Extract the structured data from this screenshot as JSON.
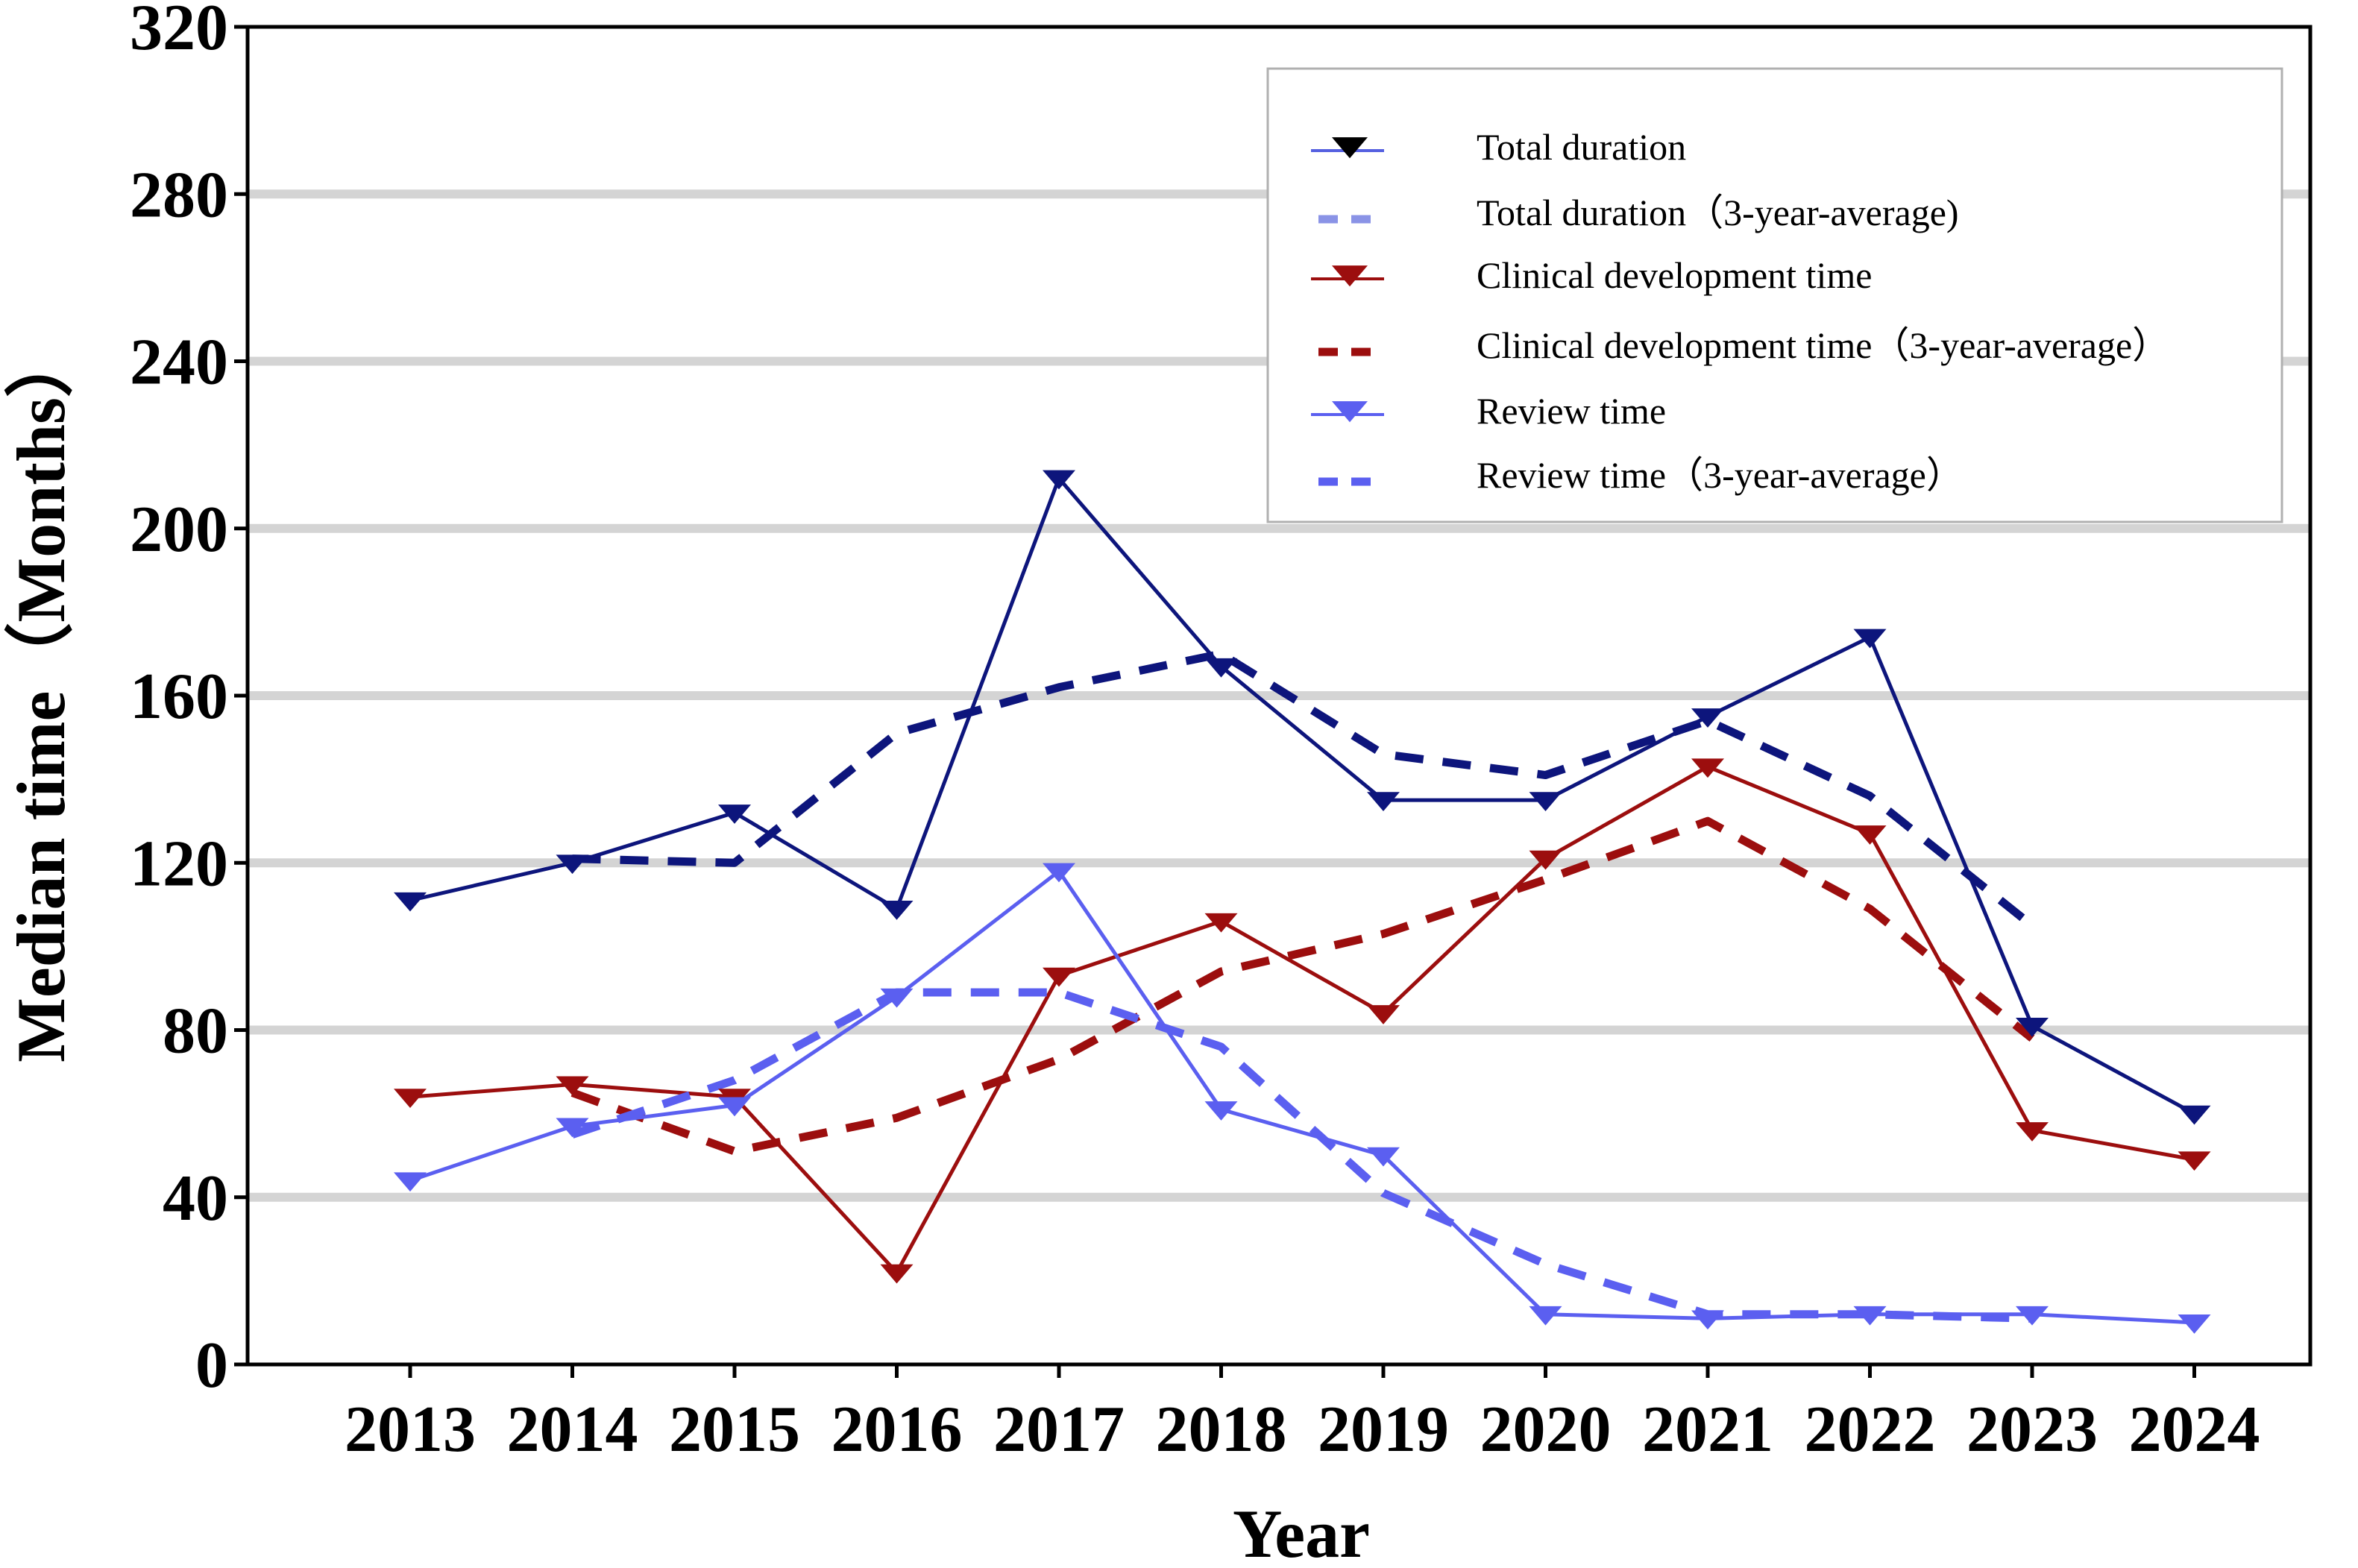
{
  "chart_data": {
    "type": "line",
    "title": "",
    "xlabel": "Year",
    "ylabel": "Median time（Months）",
    "x": [
      "2013",
      "2014",
      "2015",
      "2016",
      "2017",
      "2018",
      "2019",
      "2020",
      "2021",
      "2022",
      "2023",
      "2024"
    ],
    "ylim": [
      0,
      320
    ],
    "yticks": [
      0,
      40,
      80,
      120,
      160,
      200,
      240,
      280,
      320
    ],
    "yticks_labels": [
      "0",
      "40",
      "80",
      "120",
      "160",
      "200",
      "240",
      "280",
      "320"
    ],
    "grid": "horizontal",
    "legend_position": "top-right",
    "series": [
      {
        "name": "Total duration",
        "style": "solid",
        "marker": "triangle-down",
        "color": "#0d157c",
        "legend_marker_color": "#000000",
        "legend_line_color": "#5560e0",
        "values": [
          111,
          120,
          132,
          109,
          212,
          167,
          135,
          135,
          155,
          174,
          81,
          60
        ]
      },
      {
        "name": "Total duration（3-year-average)",
        "style": "dashed",
        "marker": "none",
        "color": "#0d157c",
        "legend_color": "#8a93e6",
        "values": [
          null,
          121,
          120,
          151,
          162,
          170,
          146,
          141,
          154,
          136,
          105,
          null
        ]
      },
      {
        "name": "Clinical development time",
        "style": "solid",
        "marker": "triangle-down",
        "color": "#9c0e0e",
        "values": [
          64,
          67,
          64,
          22,
          93,
          106,
          84,
          121,
          143,
          127,
          56,
          49
        ]
      },
      {
        "name": "Clinical development time（3-year-average）",
        "style": "dashed",
        "marker": "none",
        "color": "#9c0e0e",
        "values": [
          null,
          65,
          51,
          59,
          73,
          94,
          103,
          116,
          130,
          109,
          78,
          null
        ]
      },
      {
        "name": "Review time",
        "style": "solid",
        "marker": "triangle-down",
        "color": "#5b5ff0",
        "values": [
          44,
          57,
          62,
          88,
          118,
          61,
          50,
          12,
          11,
          12,
          12,
          10
        ]
      },
      {
        "name": "Review time（3-year-average）",
        "style": "dashed",
        "marker": "none",
        "color": "#5b5ff0",
        "values": [
          null,
          55,
          68,
          89,
          89,
          76,
          41,
          24,
          12,
          12,
          11,
          null
        ]
      }
    ]
  }
}
